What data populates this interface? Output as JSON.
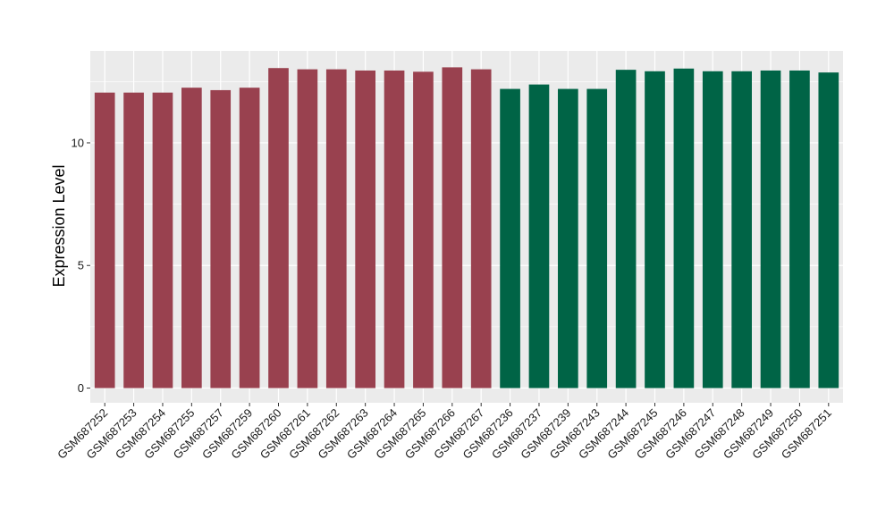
{
  "chart_data": {
    "type": "bar",
    "title": "",
    "xlabel": "",
    "ylabel": "Expression Level",
    "ylim": [
      -0.6,
      13.75
    ],
    "yticks": [
      0,
      5,
      10
    ],
    "grid": true,
    "legend": "none",
    "background": "#ebebeb",
    "categories": [
      "GSM687252",
      "GSM687253",
      "GSM687254",
      "GSM687255",
      "GSM687257",
      "GSM687259",
      "GSM687260",
      "GSM687261",
      "GSM687262",
      "GSM687263",
      "GSM687264",
      "GSM687265",
      "GSM687266",
      "GSM687267",
      "GSM687236",
      "GSM687237",
      "GSM687239",
      "GSM687243",
      "GSM687244",
      "GSM687245",
      "GSM687246",
      "GSM687247",
      "GSM687248",
      "GSM687249",
      "GSM687250",
      "GSM687251"
    ],
    "values": [
      12.05,
      12.05,
      12.05,
      12.25,
      12.15,
      12.25,
      13.05,
      13.0,
      13.0,
      12.95,
      12.95,
      12.9,
      13.08,
      13.0,
      12.2,
      12.38,
      12.2,
      12.2,
      12.98,
      12.92,
      13.03,
      12.92,
      12.92,
      12.95,
      12.95,
      12.87
    ],
    "bar_colors": [
      "#99414f",
      "#99414f",
      "#99414f",
      "#99414f",
      "#99414f",
      "#99414f",
      "#99414f",
      "#99414f",
      "#99414f",
      "#99414f",
      "#99414f",
      "#99414f",
      "#99414f",
      "#99414f",
      "#006446",
      "#006446",
      "#006446",
      "#006446",
      "#006446",
      "#006446",
      "#006446",
      "#006446",
      "#006446",
      "#006446",
      "#006446",
      "#006446"
    ]
  }
}
